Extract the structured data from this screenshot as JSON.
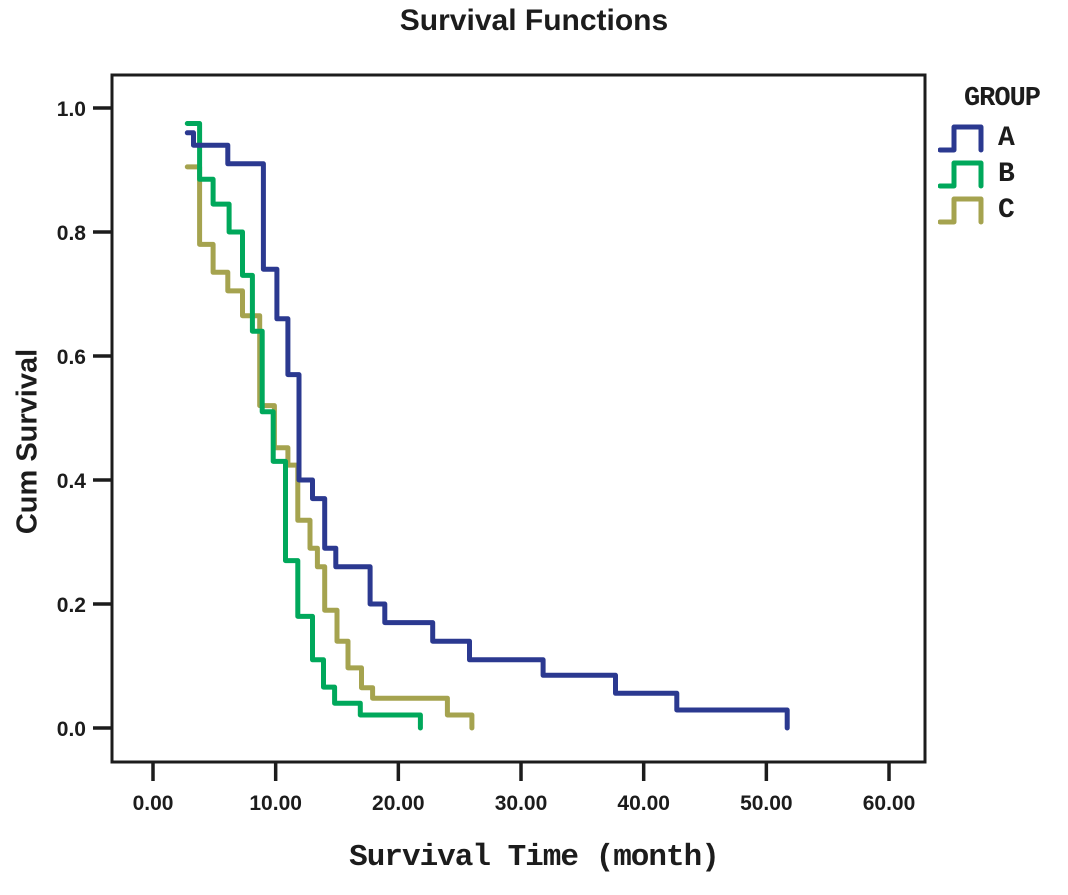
{
  "figure": {
    "kind": "kaplan-meier survival plot"
  },
  "chart_data": {
    "type": "line",
    "subtype": "step-survival",
    "title": "Survival Functions",
    "xlabel": "Survival Time (month)",
    "ylabel": "Cum Survival",
    "xlim": [
      0,
      60
    ],
    "ylim": [
      0.0,
      1.0
    ],
    "grid": false,
    "xticks": [
      "0.00",
      "10.00",
      "20.00",
      "30.00",
      "40.00",
      "50.00",
      "60.00"
    ],
    "xtick_values": [
      0,
      10,
      20,
      30,
      40,
      50,
      60
    ],
    "yticks": [
      "0.0",
      "0.2",
      "0.4",
      "0.6",
      "0.8",
      "1.0"
    ],
    "ytick_values": [
      0.0,
      0.2,
      0.4,
      0.6,
      0.8,
      1.0
    ],
    "legend_title": "GROUP",
    "legend_position": "outside-top-right",
    "axis_color": "#1c1c1c",
    "series": [
      {
        "name": "A",
        "color": "#2B3990",
        "points": [
          [
            2.8,
            0.96
          ],
          [
            3.3,
            0.94
          ],
          [
            6.1,
            0.91
          ],
          [
            9.0,
            0.74
          ],
          [
            10.1,
            0.66
          ],
          [
            11.0,
            0.57
          ],
          [
            11.9,
            0.4
          ],
          [
            13.0,
            0.37
          ],
          [
            14.0,
            0.29
          ],
          [
            14.9,
            0.26
          ],
          [
            17.7,
            0.2
          ],
          [
            18.9,
            0.17
          ],
          [
            22.8,
            0.14
          ],
          [
            25.8,
            0.11
          ],
          [
            31.8,
            0.085
          ],
          [
            37.7,
            0.056
          ],
          [
            42.7,
            0.029
          ],
          [
            51.7,
            0.0
          ]
        ]
      },
      {
        "name": "B",
        "color": "#00A85B",
        "points": [
          [
            2.8,
            0.975
          ],
          [
            3.8,
            0.885
          ],
          [
            4.9,
            0.845
          ],
          [
            6.2,
            0.8
          ],
          [
            7.3,
            0.73
          ],
          [
            8.1,
            0.64
          ],
          [
            8.9,
            0.51
          ],
          [
            9.8,
            0.43
          ],
          [
            10.8,
            0.27
          ],
          [
            11.8,
            0.18
          ],
          [
            13.0,
            0.11
          ],
          [
            13.9,
            0.066
          ],
          [
            14.8,
            0.04
          ],
          [
            16.9,
            0.021
          ],
          [
            21.8,
            0.0
          ]
        ]
      },
      {
        "name": "C",
        "color": "#A5A34F",
        "points": [
          [
            2.8,
            0.905
          ],
          [
            3.8,
            0.78
          ],
          [
            4.9,
            0.735
          ],
          [
            6.1,
            0.705
          ],
          [
            7.3,
            0.665
          ],
          [
            8.7,
            0.52
          ],
          [
            9.9,
            0.452
          ],
          [
            11.0,
            0.424
          ],
          [
            11.8,
            0.335
          ],
          [
            12.8,
            0.29
          ],
          [
            13.4,
            0.26
          ],
          [
            14.0,
            0.19
          ],
          [
            15.0,
            0.14
          ],
          [
            15.9,
            0.097
          ],
          [
            17.0,
            0.065
          ],
          [
            17.9,
            0.048
          ],
          [
            24.0,
            0.021
          ],
          [
            26.0,
            0.0
          ]
        ]
      }
    ]
  }
}
